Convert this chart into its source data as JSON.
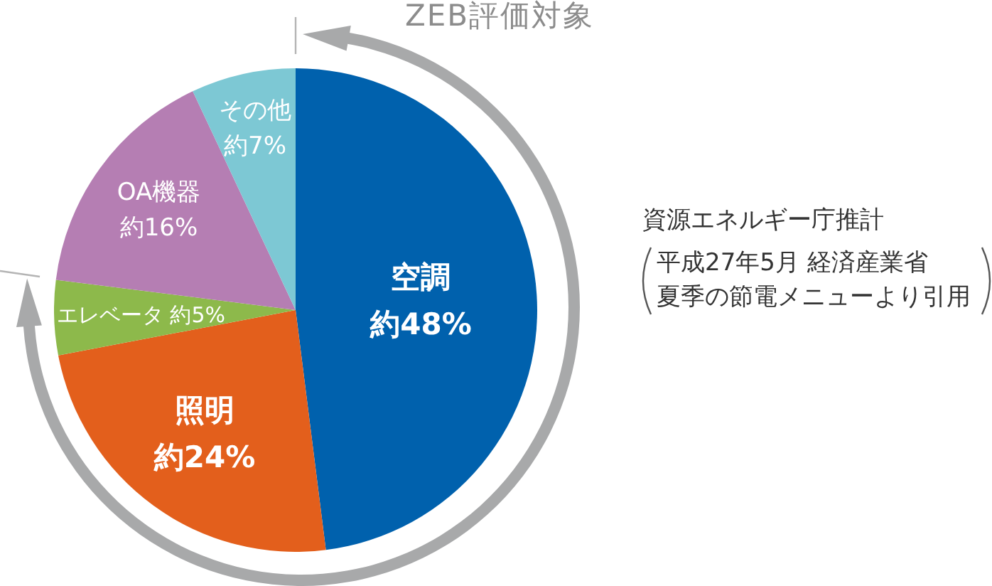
{
  "chart_data": {
    "type": "pie",
    "categories": [
      "空調",
      "照明",
      "エレベータ",
      "OA機器",
      "その他"
    ],
    "values": [
      48,
      24,
      5,
      16,
      7
    ],
    "colors": [
      "#0061ad",
      "#e35f1c",
      "#8db94b",
      "#b57eb3",
      "#7dc8d4"
    ],
    "value_labels": [
      "約48%",
      "約24%",
      "約5%",
      "約16%",
      "約7%"
    ],
    "annotations": [
      "ZEB評価対象",
      "資源エネルギー庁推計",
      "平成27年5月 経済産業省",
      "夏季の節電メニューより引用"
    ]
  }
}
